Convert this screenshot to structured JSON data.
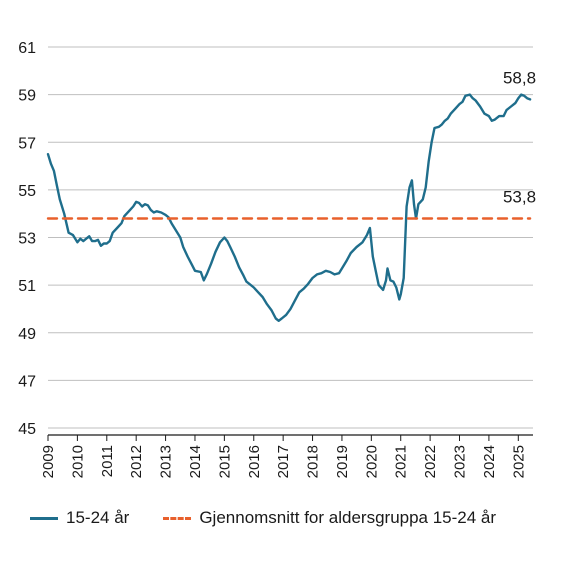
{
  "colors": {
    "series": "#1f6e8c",
    "average": "#e8602c",
    "grid": "#bfbfbf",
    "axis": "#1a1a1a"
  },
  "chart_data": {
    "type": "line",
    "title": "",
    "xlabel": "",
    "ylabel": "",
    "ylim": [
      45,
      61
    ],
    "xlim": [
      2009,
      2025.5
    ],
    "y_ticks": [
      "45",
      "47",
      "49",
      "51",
      "53",
      "55",
      "57",
      "59",
      "61"
    ],
    "x_ticks": [
      "2009",
      "2010",
      "2011",
      "2012",
      "2013",
      "2014",
      "2015",
      "2016",
      "2017",
      "2018",
      "2019",
      "2020",
      "2021",
      "2022",
      "2023",
      "2024",
      "2025"
    ],
    "grid": "horizontal",
    "legend_position": "bottom",
    "series": [
      {
        "name": "15-24 år",
        "style": "solid",
        "end_label": "58,8",
        "points": [
          [
            2009.0,
            56.5
          ],
          [
            2009.1,
            56.1
          ],
          [
            2009.2,
            55.8
          ],
          [
            2009.3,
            55.2
          ],
          [
            2009.4,
            54.6
          ],
          [
            2009.55,
            54.0
          ],
          [
            2009.7,
            53.2
          ],
          [
            2009.85,
            53.1
          ],
          [
            2010.0,
            52.8
          ],
          [
            2010.1,
            52.95
          ],
          [
            2010.2,
            52.85
          ],
          [
            2010.3,
            52.95
          ],
          [
            2010.4,
            53.05
          ],
          [
            2010.5,
            52.85
          ],
          [
            2010.6,
            52.85
          ],
          [
            2010.7,
            52.9
          ],
          [
            2010.8,
            52.65
          ],
          [
            2010.9,
            52.75
          ],
          [
            2011.0,
            52.75
          ],
          [
            2011.1,
            52.85
          ],
          [
            2011.2,
            53.2
          ],
          [
            2011.35,
            53.4
          ],
          [
            2011.5,
            53.6
          ],
          [
            2011.6,
            53.9
          ],
          [
            2011.75,
            54.1
          ],
          [
            2011.9,
            54.3
          ],
          [
            2012.0,
            54.5
          ],
          [
            2012.1,
            54.45
          ],
          [
            2012.2,
            54.3
          ],
          [
            2012.3,
            54.4
          ],
          [
            2012.4,
            54.35
          ],
          [
            2012.5,
            54.15
          ],
          [
            2012.6,
            54.05
          ],
          [
            2012.7,
            54.1
          ],
          [
            2012.85,
            54.05
          ],
          [
            2013.0,
            53.95
          ],
          [
            2013.1,
            53.85
          ],
          [
            2013.2,
            53.6
          ],
          [
            2013.35,
            53.3
          ],
          [
            2013.5,
            53.0
          ],
          [
            2013.6,
            52.6
          ],
          [
            2013.75,
            52.2
          ],
          [
            2013.9,
            51.85
          ],
          [
            2014.0,
            51.6
          ],
          [
            2014.2,
            51.55
          ],
          [
            2014.3,
            51.2
          ],
          [
            2014.4,
            51.45
          ],
          [
            2014.55,
            51.9
          ],
          [
            2014.7,
            52.4
          ],
          [
            2014.85,
            52.8
          ],
          [
            2015.0,
            53.0
          ],
          [
            2015.1,
            52.85
          ],
          [
            2015.2,
            52.6
          ],
          [
            2015.35,
            52.2
          ],
          [
            2015.5,
            51.75
          ],
          [
            2015.65,
            51.4
          ],
          [
            2015.75,
            51.15
          ],
          [
            2015.9,
            51.0
          ],
          [
            2016.0,
            50.9
          ],
          [
            2016.15,
            50.7
          ],
          [
            2016.3,
            50.5
          ],
          [
            2016.45,
            50.2
          ],
          [
            2016.6,
            49.95
          ],
          [
            2016.75,
            49.6
          ],
          [
            2016.85,
            49.5
          ],
          [
            2016.95,
            49.6
          ],
          [
            2017.1,
            49.75
          ],
          [
            2017.25,
            50.0
          ],
          [
            2017.4,
            50.35
          ],
          [
            2017.55,
            50.7
          ],
          [
            2017.7,
            50.85
          ],
          [
            2017.85,
            51.05
          ],
          [
            2018.0,
            51.3
          ],
          [
            2018.15,
            51.45
          ],
          [
            2018.3,
            51.5
          ],
          [
            2018.45,
            51.6
          ],
          [
            2018.6,
            51.55
          ],
          [
            2018.75,
            51.45
          ],
          [
            2018.9,
            51.5
          ],
          [
            2019.0,
            51.7
          ],
          [
            2019.15,
            52.0
          ],
          [
            2019.3,
            52.35
          ],
          [
            2019.5,
            52.6
          ],
          [
            2019.7,
            52.8
          ],
          [
            2019.85,
            53.1
          ],
          [
            2019.95,
            53.4
          ],
          [
            2020.05,
            52.2
          ],
          [
            2020.15,
            51.6
          ],
          [
            2020.25,
            51.0
          ],
          [
            2020.4,
            50.8
          ],
          [
            2020.5,
            51.2
          ],
          [
            2020.55,
            51.7
          ],
          [
            2020.65,
            51.2
          ],
          [
            2020.75,
            51.15
          ],
          [
            2020.85,
            50.9
          ],
          [
            2020.95,
            50.4
          ],
          [
            2021.0,
            50.6
          ],
          [
            2021.1,
            51.3
          ],
          [
            2021.2,
            54.3
          ],
          [
            2021.3,
            55.1
          ],
          [
            2021.38,
            55.4
          ],
          [
            2021.45,
            54.4
          ],
          [
            2021.52,
            53.8
          ],
          [
            2021.6,
            54.4
          ],
          [
            2021.75,
            54.6
          ],
          [
            2021.85,
            55.1
          ],
          [
            2021.95,
            56.2
          ],
          [
            2022.05,
            57.0
          ],
          [
            2022.15,
            57.6
          ],
          [
            2022.3,
            57.65
          ],
          [
            2022.4,
            57.75
          ],
          [
            2022.5,
            57.9
          ],
          [
            2022.6,
            58.0
          ],
          [
            2022.7,
            58.2
          ],
          [
            2022.85,
            58.4
          ],
          [
            2023.0,
            58.6
          ],
          [
            2023.1,
            58.7
          ],
          [
            2023.2,
            58.95
          ],
          [
            2023.35,
            59.0
          ],
          [
            2023.45,
            58.85
          ],
          [
            2023.55,
            58.75
          ],
          [
            2023.7,
            58.5
          ],
          [
            2023.85,
            58.2
          ],
          [
            2024.0,
            58.1
          ],
          [
            2024.1,
            57.9
          ],
          [
            2024.2,
            57.95
          ],
          [
            2024.35,
            58.1
          ],
          [
            2024.5,
            58.1
          ],
          [
            2024.6,
            58.35
          ],
          [
            2024.75,
            58.5
          ],
          [
            2024.9,
            58.65
          ],
          [
            2025.0,
            58.85
          ],
          [
            2025.1,
            59.0
          ],
          [
            2025.2,
            58.95
          ],
          [
            2025.3,
            58.85
          ],
          [
            2025.4,
            58.8
          ]
        ]
      },
      {
        "name": "Gjennomsnitt for aldersgruppa 15-24 år",
        "style": "dashed",
        "end_label": "53,8",
        "points": [
          [
            2009.0,
            53.8
          ],
          [
            2025.4,
            53.8
          ]
        ]
      }
    ]
  }
}
